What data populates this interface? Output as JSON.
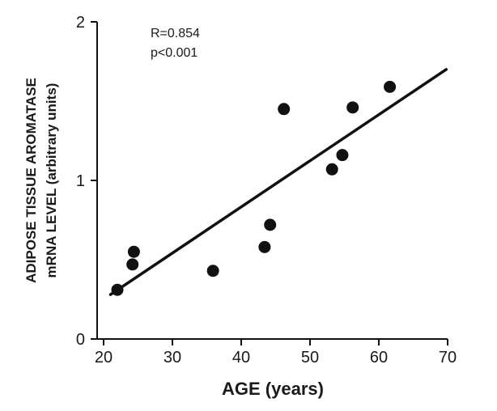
{
  "chart_data": {
    "type": "scatter",
    "title": "",
    "xlabel": "AGE (years)",
    "ylabel_lines": [
      "ADIPOSE TISSUE AROMATASE",
      "mRNA LEVEL (arbitrary units)"
    ],
    "xlim": [
      20,
      70
    ],
    "ylim": [
      0,
      2
    ],
    "xticks": [
      20,
      30,
      40,
      50,
      60,
      70
    ],
    "yticks": [
      0,
      1,
      2
    ],
    "grid": false,
    "legend": "none",
    "annotations": [
      "R=0.854",
      "p<0.001"
    ],
    "points": [
      {
        "x": 22,
        "y": 0.31
      },
      {
        "x": 24.2,
        "y": 0.47
      },
      {
        "x": 24.4,
        "y": 0.55
      },
      {
        "x": 35.9,
        "y": 0.43
      },
      {
        "x": 43.4,
        "y": 0.58
      },
      {
        "x": 44.2,
        "y": 0.72
      },
      {
        "x": 46.2,
        "y": 1.45
      },
      {
        "x": 53.2,
        "y": 1.07
      },
      {
        "x": 54.7,
        "y": 1.16
      },
      {
        "x": 56.2,
        "y": 1.46
      },
      {
        "x": 61.6,
        "y": 1.59
      }
    ],
    "regression_line": {
      "x": [
        21,
        69.8
      ],
      "y": [
        0.28,
        1.7
      ]
    },
    "colors": {
      "marker": "#111111",
      "line": "#111111",
      "axis": "#111111"
    }
  }
}
